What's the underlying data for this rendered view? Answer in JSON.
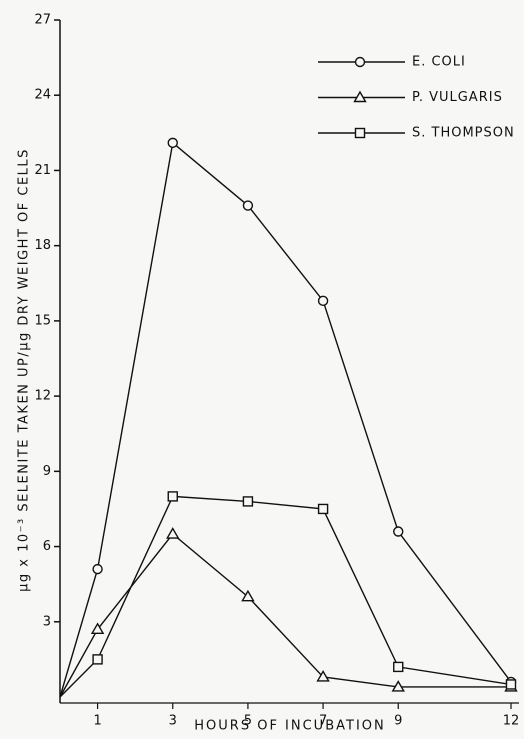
{
  "chart_data": {
    "type": "line",
    "x_label": "HOURS OF INCUBATION",
    "y_label": "μg x 10⁻³ SELENITE TAKEN UP/μg DRY WEIGHT OF CELLS",
    "x": [
      0,
      1,
      3,
      5,
      7,
      9,
      12
    ],
    "series": [
      {
        "name": "E. COLI",
        "color": "#111111",
        "marker": "circle",
        "values": [
          0,
          5.1,
          22.1,
          19.6,
          15.8,
          6.6,
          0.6
        ]
      },
      {
        "name": "P. VULGARIS",
        "color": "#111111",
        "marker": "triangle",
        "values": [
          0,
          2.7,
          6.5,
          4.0,
          0.8,
          0.4,
          0.4
        ]
      },
      {
        "name": "S. THOMPSON",
        "color": "#111111",
        "marker": "square",
        "values": [
          0,
          1.5,
          8.0,
          7.8,
          7.5,
          1.2,
          0.5
        ]
      }
    ],
    "xlim": [
      0,
      12
    ],
    "xticks": [
      1,
      3,
      5,
      7,
      9,
      12
    ],
    "ylim": [
      0,
      27
    ],
    "yticks": [
      3,
      6,
      9,
      12,
      15,
      18,
      21,
      24,
      27
    ],
    "grid": false,
    "legend": "upper right"
  }
}
